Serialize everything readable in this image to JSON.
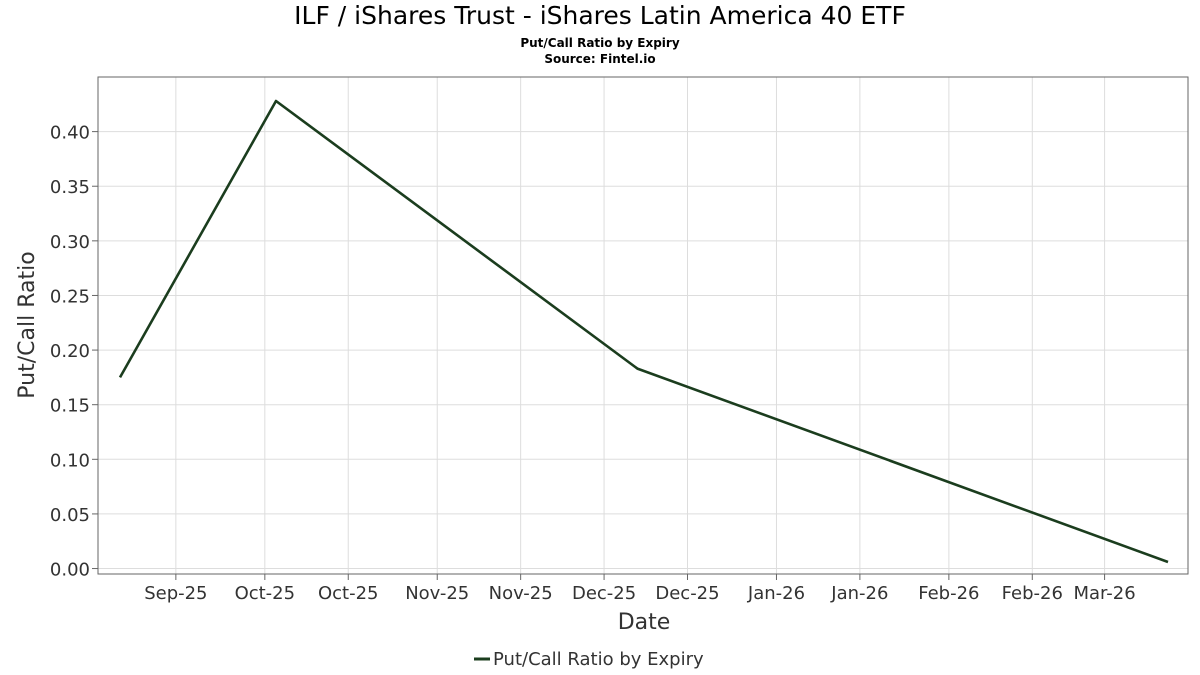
{
  "chart_data": {
    "type": "line",
    "title": "ILF / iShares Trust - iShares Latin America 40 ETF",
    "subtitle": "Put/Call Ratio by Expiry",
    "source": "Source: Fintel.io",
    "xlabel": "Date",
    "ylabel": "Put/Call Ratio",
    "x_tick_labels": [
      "Sep-25",
      "Oct-25",
      "Oct-25",
      "Nov-25",
      "Nov-25",
      "Dec-25",
      "Dec-25",
      "Jan-26",
      "Jan-26",
      "Feb-26",
      "Feb-26",
      "Mar-26"
    ],
    "x_tick_dates": [
      "2025-09-15",
      "2025-10-01",
      "2025-10-16",
      "2025-11-01",
      "2025-11-16",
      "2025-12-01",
      "2025-12-16",
      "2026-01-01",
      "2026-01-16",
      "2026-02-01",
      "2026-02-16",
      "2026-03-01"
    ],
    "xlim": [
      "2025-09-01",
      "2026-03-16"
    ],
    "ylim": [
      -0.005,
      0.45
    ],
    "y_ticks": [
      0.0,
      0.05,
      0.1,
      0.15,
      0.2,
      0.25,
      0.3,
      0.35,
      0.4
    ],
    "y_tick_labels": [
      "0.00",
      "0.05",
      "0.10",
      "0.15",
      "0.20",
      "0.25",
      "0.30",
      "0.35",
      "0.40"
    ],
    "grid": true,
    "legend_position": "bottom-center",
    "series": [
      {
        "name": "Put/Call Ratio by Expiry",
        "color": "#1b3d1e",
        "x": [
          "2025-09-04",
          "2025-10-03",
          "2025-12-07",
          "2026-03-19"
        ],
        "y": [
          0.175,
          0.428,
          0.183,
          0.006
        ]
      }
    ]
  }
}
